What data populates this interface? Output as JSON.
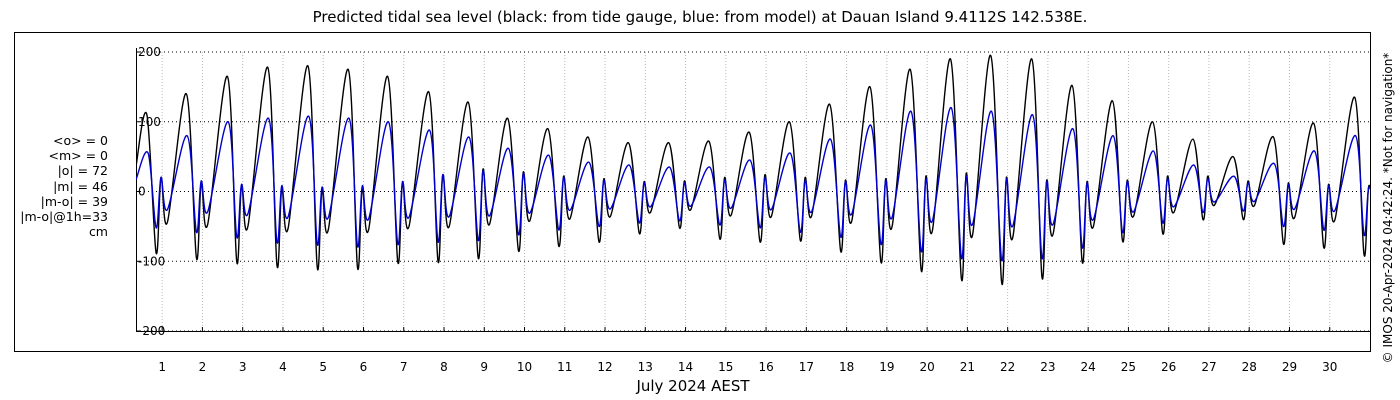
{
  "chart_data": {
    "type": "line",
    "title": "Predicted tidal sea level (black: from tide gauge, blue: from model) at Dauan Island 9.4112S 142.538E.",
    "xlabel": "July 2024 AEST",
    "ylabel": "",
    "ylim": [
      -200,
      200
    ],
    "yticks": [
      -200,
      -100,
      0,
      100,
      200
    ],
    "xlim": [
      0.35,
      31.0
    ],
    "xticks": [
      1,
      2,
      3,
      4,
      5,
      6,
      7,
      8,
      9,
      10,
      11,
      12,
      13,
      14,
      15,
      16,
      17,
      18,
      19,
      20,
      21,
      22,
      23,
      24,
      25,
      26,
      27,
      28,
      29,
      30
    ],
    "xtick_labels": [
      "1",
      "2",
      "3",
      "4",
      "5",
      "6",
      "7",
      "8",
      "9",
      "10",
      "11",
      "12",
      "13",
      "14",
      "15",
      "16",
      "17",
      "18",
      "19",
      "20",
      "21",
      "22",
      "23",
      "24",
      "25",
      "26",
      "27",
      "28",
      "29",
      "30"
    ],
    "ytick_labels": [
      "-200",
      "-100",
      "0",
      "100",
      "200"
    ],
    "grid": "dotted vertical at each day",
    "series": [
      {
        "color": "#000000",
        "high_tide_peaks": {
          "x": [
            0.62,
            1.6,
            2.62,
            3.62,
            4.62,
            5.62,
            6.6,
            7.62,
            8.6,
            9.58,
            10.58,
            11.58,
            12.58,
            13.58,
            14.58,
            15.58,
            16.58,
            17.58,
            18.58,
            19.58,
            20.58,
            21.58,
            22.6,
            23.6,
            24.6,
            25.6,
            26.6,
            27.6,
            28.6,
            29.6,
            30.62
          ],
          "y": [
            110,
            140,
            165,
            178,
            180,
            175,
            165,
            143,
            128,
            105,
            90,
            78,
            70,
            70,
            72,
            85,
            100,
            125,
            150,
            175,
            190,
            195,
            190,
            152,
            130,
            100,
            75,
            50,
            78,
            98,
            135
          ]
        },
        "low_tide_troughs": {
          "x": [
            0.85,
            1.85,
            2.85,
            3.85,
            4.85,
            5.85,
            6.85,
            7.85,
            8.85,
            9.85,
            10.85,
            11.85,
            12.85,
            13.85,
            14.85,
            15.85,
            16.85,
            17.85,
            18.85,
            19.85,
            20.85,
            21.85,
            22.85,
            23.85,
            24.85,
            25.85,
            26.85,
            27.85,
            28.85,
            29.85,
            30.85
          ],
          "y": [
            -88,
            -95,
            -100,
            -105,
            -108,
            -108,
            -100,
            -100,
            -95,
            -85,
            -78,
            -72,
            -60,
            -52,
            -68,
            -72,
            -70,
            -85,
            -100,
            -112,
            -125,
            -130,
            -122,
            -100,
            -70,
            -60,
            -40,
            -40,
            -75,
            -80,
            -90
          ]
        },
        "secondary_highs": [
          20,
          12,
          8,
          4,
          2,
          5,
          12,
          24,
          32,
          28,
          22,
          18,
          14,
          15,
          20,
          24,
          20,
          16,
          18,
          22,
          26,
          20,
          16,
          14,
          16,
          22,
          22,
          15,
          12,
          10,
          8
        ]
      },
      {
        "color": "#0000cc",
        "high_tide_peaks": {
          "x": [
            0.65,
            1.62,
            2.64,
            3.64,
            4.64,
            5.64,
            6.62,
            7.64,
            8.62,
            9.6,
            10.6,
            11.6,
            12.6,
            13.6,
            14.6,
            15.6,
            16.6,
            17.6,
            18.6,
            19.6,
            20.6,
            21.6,
            22.62,
            23.62,
            24.62,
            25.62,
            26.62,
            27.62,
            28.62,
            29.62,
            30.64
          ],
          "y": [
            55,
            80,
            100,
            105,
            108,
            105,
            100,
            88,
            78,
            62,
            52,
            42,
            38,
            35,
            35,
            45,
            55,
            75,
            95,
            115,
            120,
            115,
            110,
            90,
            80,
            58,
            38,
            22,
            40,
            58,
            80
          ]
        },
        "low_tide_troughs": {
          "x": [
            0.85,
            1.85,
            2.85,
            3.85,
            4.85,
            5.85,
            6.85,
            7.85,
            8.85,
            9.85,
            10.85,
            11.85,
            12.85,
            13.85,
            14.85,
            15.85,
            16.85,
            17.85,
            18.85,
            19.85,
            20.85,
            21.85,
            22.85,
            23.85,
            24.85,
            25.85,
            26.85,
            27.85,
            28.85,
            29.85,
            30.85
          ],
          "y": [
            -52,
            -58,
            -65,
            -72,
            -75,
            -78,
            -75,
            -72,
            -70,
            -62,
            -55,
            -50,
            -45,
            -42,
            -48,
            -52,
            -58,
            -65,
            -75,
            -85,
            -95,
            -98,
            -95,
            -80,
            -58,
            -45,
            -30,
            -28,
            -50,
            -55,
            -62
          ]
        },
        "secondary_highs": [
          20,
          15,
          10,
          8,
          6,
          8,
          14,
          24,
          30,
          26,
          20,
          16,
          12,
          12,
          16,
          20,
          16,
          14,
          16,
          18,
          22,
          18,
          14,
          12,
          14,
          18,
          18,
          12,
          10,
          8,
          6
        ]
      }
    ]
  },
  "stats": {
    "lines": [
      "<o> = 0",
      "<m> = 0",
      "|o| = 72",
      "|m| = 46",
      "|m-o| = 39",
      "|m-o|@1h=33",
      "cm"
    ]
  },
  "copyright": "© IMOS 20-Apr-2024 04:42:24. *Not for navigation*"
}
